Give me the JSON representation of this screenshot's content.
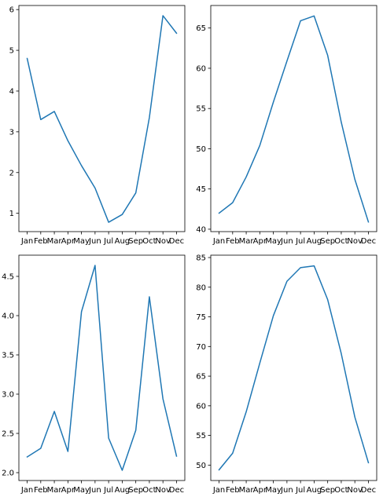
{
  "chart_data": [
    {
      "type": "line",
      "categories": [
        "Jan",
        "Feb",
        "Mar",
        "Apr",
        "May",
        "Jun",
        "Jul",
        "Aug",
        "Sep",
        "Oct",
        "Nov",
        "Dec"
      ],
      "series": [
        {
          "values": [
            4.8,
            3.3,
            3.5,
            2.78,
            2.17,
            1.62,
            0.78,
            0.97,
            1.5,
            3.35,
            5.85,
            5.42
          ]
        }
      ],
      "yticks": [
        1,
        2,
        3,
        4,
        5,
        6
      ],
      "ylim": [
        0.55,
        6.1
      ],
      "grid": false,
      "color": "#1f77b4"
    },
    {
      "type": "line",
      "categories": [
        "Jan",
        "Feb",
        "Mar",
        "Apr",
        "May",
        "Jun",
        "Jul",
        "Aug",
        "Sep",
        "Oct",
        "Nov",
        "Dec"
      ],
      "series": [
        {
          "values": [
            42.0,
            43.3,
            46.5,
            50.4,
            55.8,
            60.9,
            65.9,
            66.5,
            61.6,
            53.3,
            46.2,
            40.9
          ]
        }
      ],
      "yticks": [
        40,
        45,
        50,
        55,
        60,
        65
      ],
      "ylim": [
        39.7,
        67.8
      ],
      "grid": false,
      "color": "#1f77b4"
    },
    {
      "type": "line",
      "categories": [
        "Jan",
        "Feb",
        "Mar",
        "Apr",
        "May",
        "Jun",
        "Jul",
        "Aug",
        "Sep",
        "Oct",
        "Nov",
        "Dec"
      ],
      "series": [
        {
          "values": [
            2.2,
            2.31,
            2.78,
            2.27,
            4.05,
            4.64,
            2.44,
            2.03,
            2.54,
            4.24,
            2.94,
            2.21
          ]
        }
      ],
      "yticks": [
        2.0,
        2.5,
        3.0,
        3.5,
        4.0,
        4.5
      ],
      "ylim": [
        1.9,
        4.77
      ],
      "grid": false,
      "color": "#1f77b4"
    },
    {
      "type": "line",
      "categories": [
        "Jan",
        "Feb",
        "Mar",
        "Apr",
        "May",
        "Jun",
        "Jul",
        "Aug",
        "Sep",
        "Oct",
        "Nov",
        "Dec"
      ],
      "series": [
        {
          "values": [
            49.2,
            52.0,
            59.0,
            67.2,
            75.2,
            81.0,
            83.3,
            83.6,
            77.9,
            68.8,
            58.1,
            50.4
          ]
        }
      ],
      "yticks": [
        50,
        55,
        60,
        65,
        70,
        75,
        80,
        85
      ],
      "ylim": [
        47.4,
        85.4
      ],
      "grid": false,
      "color": "#1f77b4"
    }
  ]
}
